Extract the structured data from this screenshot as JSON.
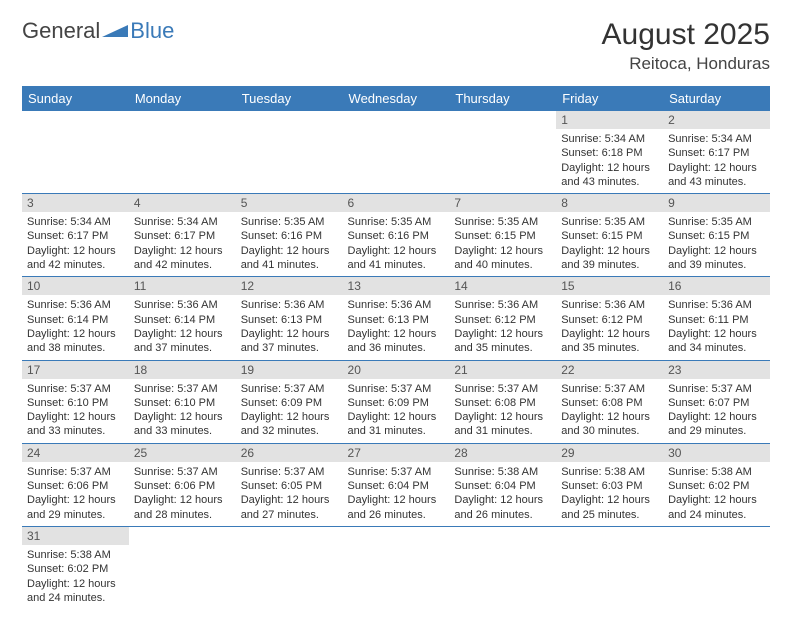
{
  "logo": {
    "text1": "General",
    "text2": "Blue"
  },
  "title": "August 2025",
  "location": "Reitoca, Honduras",
  "colors": {
    "header_bg": "#3a7ab8",
    "header_text": "#ffffff",
    "daynum_bg": "#e2e2e2",
    "row_border": "#3a7ab8",
    "logo_accent": "#3a7ab8"
  },
  "weekdays": [
    "Sunday",
    "Monday",
    "Tuesday",
    "Wednesday",
    "Thursday",
    "Friday",
    "Saturday"
  ],
  "weeks": [
    [
      null,
      null,
      null,
      null,
      null,
      {
        "n": "1",
        "sr": "Sunrise: 5:34 AM",
        "ss": "Sunset: 6:18 PM",
        "d1": "Daylight: 12 hours",
        "d2": "and 43 minutes."
      },
      {
        "n": "2",
        "sr": "Sunrise: 5:34 AM",
        "ss": "Sunset: 6:17 PM",
        "d1": "Daylight: 12 hours",
        "d2": "and 43 minutes."
      }
    ],
    [
      {
        "n": "3",
        "sr": "Sunrise: 5:34 AM",
        "ss": "Sunset: 6:17 PM",
        "d1": "Daylight: 12 hours",
        "d2": "and 42 minutes."
      },
      {
        "n": "4",
        "sr": "Sunrise: 5:34 AM",
        "ss": "Sunset: 6:17 PM",
        "d1": "Daylight: 12 hours",
        "d2": "and 42 minutes."
      },
      {
        "n": "5",
        "sr": "Sunrise: 5:35 AM",
        "ss": "Sunset: 6:16 PM",
        "d1": "Daylight: 12 hours",
        "d2": "and 41 minutes."
      },
      {
        "n": "6",
        "sr": "Sunrise: 5:35 AM",
        "ss": "Sunset: 6:16 PM",
        "d1": "Daylight: 12 hours",
        "d2": "and 41 minutes."
      },
      {
        "n": "7",
        "sr": "Sunrise: 5:35 AM",
        "ss": "Sunset: 6:15 PM",
        "d1": "Daylight: 12 hours",
        "d2": "and 40 minutes."
      },
      {
        "n": "8",
        "sr": "Sunrise: 5:35 AM",
        "ss": "Sunset: 6:15 PM",
        "d1": "Daylight: 12 hours",
        "d2": "and 39 minutes."
      },
      {
        "n": "9",
        "sr": "Sunrise: 5:35 AM",
        "ss": "Sunset: 6:15 PM",
        "d1": "Daylight: 12 hours",
        "d2": "and 39 minutes."
      }
    ],
    [
      {
        "n": "10",
        "sr": "Sunrise: 5:36 AM",
        "ss": "Sunset: 6:14 PM",
        "d1": "Daylight: 12 hours",
        "d2": "and 38 minutes."
      },
      {
        "n": "11",
        "sr": "Sunrise: 5:36 AM",
        "ss": "Sunset: 6:14 PM",
        "d1": "Daylight: 12 hours",
        "d2": "and 37 minutes."
      },
      {
        "n": "12",
        "sr": "Sunrise: 5:36 AM",
        "ss": "Sunset: 6:13 PM",
        "d1": "Daylight: 12 hours",
        "d2": "and 37 minutes."
      },
      {
        "n": "13",
        "sr": "Sunrise: 5:36 AM",
        "ss": "Sunset: 6:13 PM",
        "d1": "Daylight: 12 hours",
        "d2": "and 36 minutes."
      },
      {
        "n": "14",
        "sr": "Sunrise: 5:36 AM",
        "ss": "Sunset: 6:12 PM",
        "d1": "Daylight: 12 hours",
        "d2": "and 35 minutes."
      },
      {
        "n": "15",
        "sr": "Sunrise: 5:36 AM",
        "ss": "Sunset: 6:12 PM",
        "d1": "Daylight: 12 hours",
        "d2": "and 35 minutes."
      },
      {
        "n": "16",
        "sr": "Sunrise: 5:36 AM",
        "ss": "Sunset: 6:11 PM",
        "d1": "Daylight: 12 hours",
        "d2": "and 34 minutes."
      }
    ],
    [
      {
        "n": "17",
        "sr": "Sunrise: 5:37 AM",
        "ss": "Sunset: 6:10 PM",
        "d1": "Daylight: 12 hours",
        "d2": "and 33 minutes."
      },
      {
        "n": "18",
        "sr": "Sunrise: 5:37 AM",
        "ss": "Sunset: 6:10 PM",
        "d1": "Daylight: 12 hours",
        "d2": "and 33 minutes."
      },
      {
        "n": "19",
        "sr": "Sunrise: 5:37 AM",
        "ss": "Sunset: 6:09 PM",
        "d1": "Daylight: 12 hours",
        "d2": "and 32 minutes."
      },
      {
        "n": "20",
        "sr": "Sunrise: 5:37 AM",
        "ss": "Sunset: 6:09 PM",
        "d1": "Daylight: 12 hours",
        "d2": "and 31 minutes."
      },
      {
        "n": "21",
        "sr": "Sunrise: 5:37 AM",
        "ss": "Sunset: 6:08 PM",
        "d1": "Daylight: 12 hours",
        "d2": "and 31 minutes."
      },
      {
        "n": "22",
        "sr": "Sunrise: 5:37 AM",
        "ss": "Sunset: 6:08 PM",
        "d1": "Daylight: 12 hours",
        "d2": "and 30 minutes."
      },
      {
        "n": "23",
        "sr": "Sunrise: 5:37 AM",
        "ss": "Sunset: 6:07 PM",
        "d1": "Daylight: 12 hours",
        "d2": "and 29 minutes."
      }
    ],
    [
      {
        "n": "24",
        "sr": "Sunrise: 5:37 AM",
        "ss": "Sunset: 6:06 PM",
        "d1": "Daylight: 12 hours",
        "d2": "and 29 minutes."
      },
      {
        "n": "25",
        "sr": "Sunrise: 5:37 AM",
        "ss": "Sunset: 6:06 PM",
        "d1": "Daylight: 12 hours",
        "d2": "and 28 minutes."
      },
      {
        "n": "26",
        "sr": "Sunrise: 5:37 AM",
        "ss": "Sunset: 6:05 PM",
        "d1": "Daylight: 12 hours",
        "d2": "and 27 minutes."
      },
      {
        "n": "27",
        "sr": "Sunrise: 5:37 AM",
        "ss": "Sunset: 6:04 PM",
        "d1": "Daylight: 12 hours",
        "d2": "and 26 minutes."
      },
      {
        "n": "28",
        "sr": "Sunrise: 5:38 AM",
        "ss": "Sunset: 6:04 PM",
        "d1": "Daylight: 12 hours",
        "d2": "and 26 minutes."
      },
      {
        "n": "29",
        "sr": "Sunrise: 5:38 AM",
        "ss": "Sunset: 6:03 PM",
        "d1": "Daylight: 12 hours",
        "d2": "and 25 minutes."
      },
      {
        "n": "30",
        "sr": "Sunrise: 5:38 AM",
        "ss": "Sunset: 6:02 PM",
        "d1": "Daylight: 12 hours",
        "d2": "and 24 minutes."
      }
    ],
    [
      {
        "n": "31",
        "sr": "Sunrise: 5:38 AM",
        "ss": "Sunset: 6:02 PM",
        "d1": "Daylight: 12 hours",
        "d2": "and 24 minutes."
      },
      null,
      null,
      null,
      null,
      null,
      null
    ]
  ]
}
